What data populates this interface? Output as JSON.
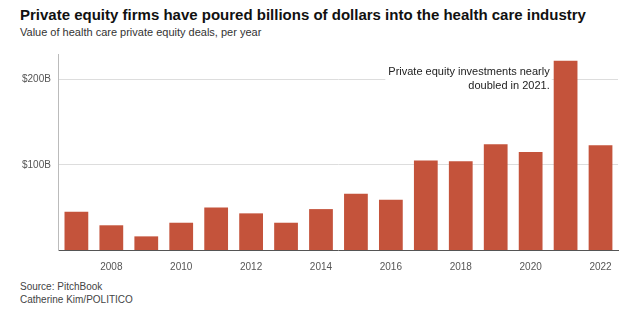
{
  "chart_data": {
    "type": "bar",
    "title": "Private equity firms have poured billions of dollars into the health care industry",
    "subtitle": "Value of health care private equity deals, per year",
    "annotation": [
      "Private equity investments nearly",
      "doubled in 2021."
    ],
    "source": "Source: PitchBook",
    "credit": "Catherine Kim/POLITICO",
    "categories": [
      null,
      "2008",
      null,
      "2010",
      null,
      "2012",
      null,
      "2014",
      null,
      "2016",
      null,
      "2018",
      null,
      "2020",
      null,
      "2022"
    ],
    "values": [
      45,
      29,
      16,
      32,
      50,
      43,
      32,
      48,
      66,
      59,
      105,
      104,
      124,
      115,
      222,
      123
    ],
    "color": "#c4533b",
    "ylim": [
      0,
      230
    ],
    "yticks": [
      {
        "value": 100,
        "label": "$100B"
      },
      {
        "value": 200,
        "label": "$200B"
      }
    ],
    "grid": true
  }
}
